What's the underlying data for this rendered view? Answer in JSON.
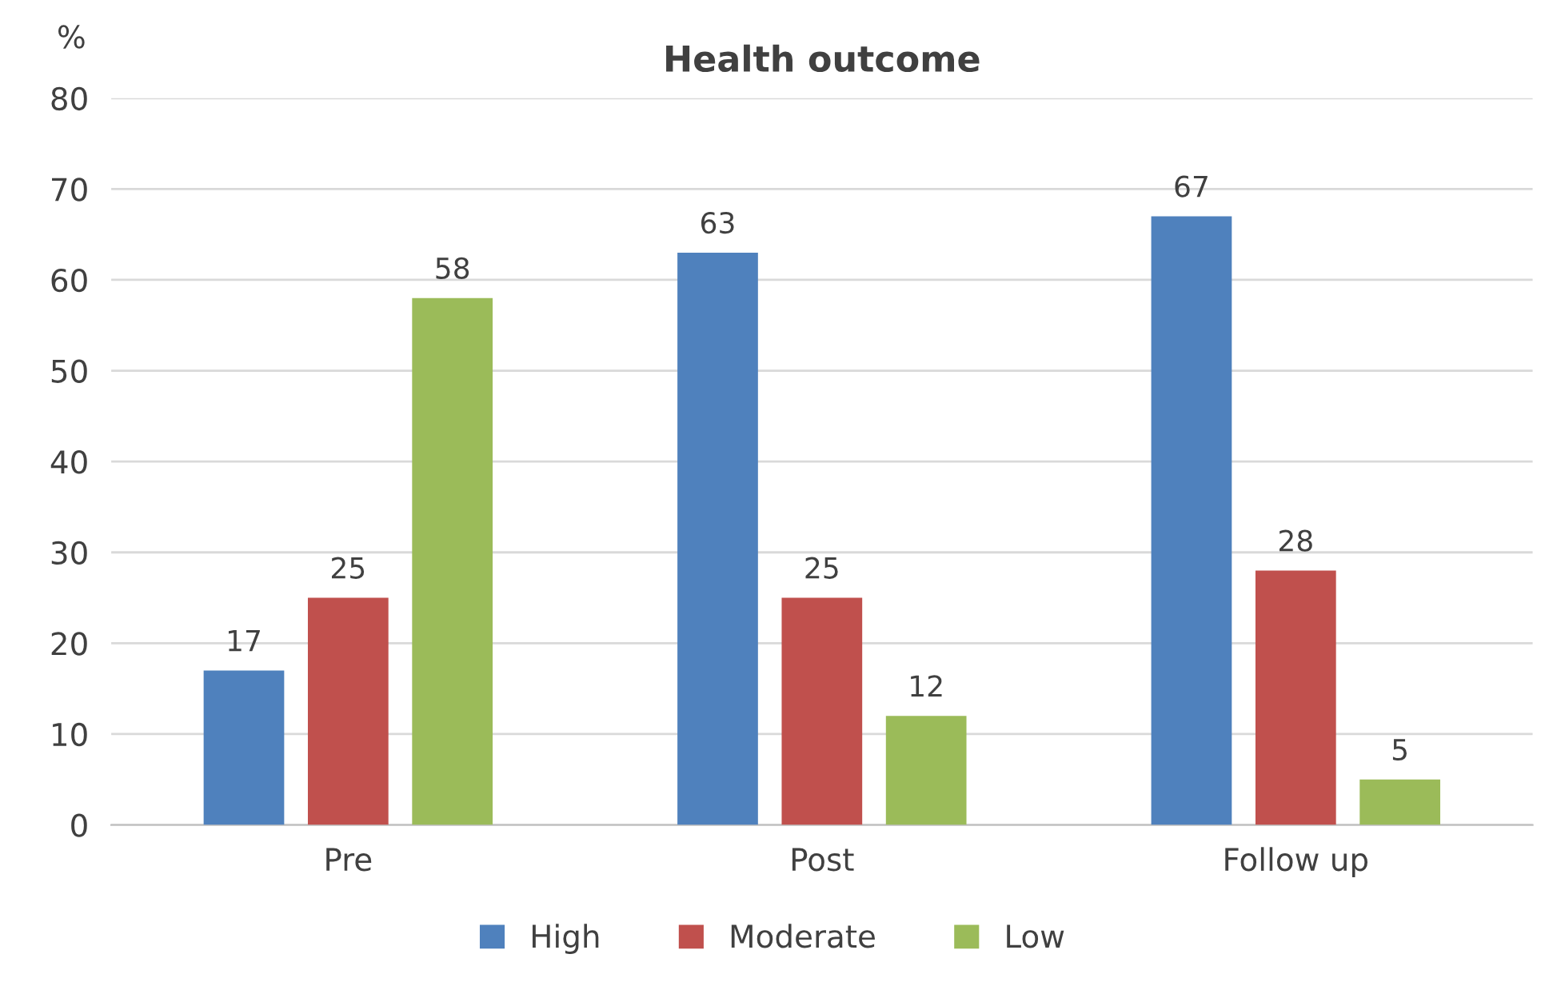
{
  "chart_data": {
    "type": "bar",
    "title": "Health outcome",
    "ylabel": "%",
    "categories": [
      "Pre",
      "Post",
      "Follow up"
    ],
    "series": [
      {
        "name": "High",
        "color": "#4f81bd",
        "values": [
          17,
          63,
          67
        ]
      },
      {
        "name": "Moderate",
        "color": "#c0504d",
        "values": [
          25,
          25,
          28
        ]
      },
      {
        "name": "Low",
        "color": "#9bbb59",
        "values": [
          58,
          12,
          5
        ]
      }
    ],
    "ylim": [
      0,
      80
    ],
    "yticks": [
      0,
      10,
      20,
      30,
      40,
      50,
      60,
      70,
      80
    ],
    "grid": "y",
    "legend": "bottom",
    "data_labels": true
  }
}
